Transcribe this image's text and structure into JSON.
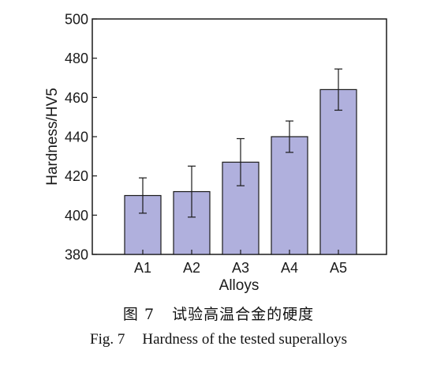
{
  "chart_data": {
    "type": "bar",
    "categories": [
      "A1",
      "A2",
      "A3",
      "A4",
      "A5"
    ],
    "values": [
      410,
      412,
      427,
      440,
      464
    ],
    "errors": [
      9,
      13,
      12,
      8,
      10.5
    ],
    "xlabel": "Alloys",
    "ylabel": "Hardness/HV5",
    "ylim": [
      380,
      500
    ],
    "yticks": [
      380,
      400,
      420,
      440,
      460,
      480,
      500
    ],
    "grid": false,
    "bar_color": "#b0b0dd",
    "bar_edge_color": "#1a1a1a"
  },
  "caption": {
    "cn_label": "图 7",
    "cn_text": "试验高温合金的硬度",
    "en_label": "Fig. 7",
    "en_text": "Hardness of the tested superalloys"
  }
}
